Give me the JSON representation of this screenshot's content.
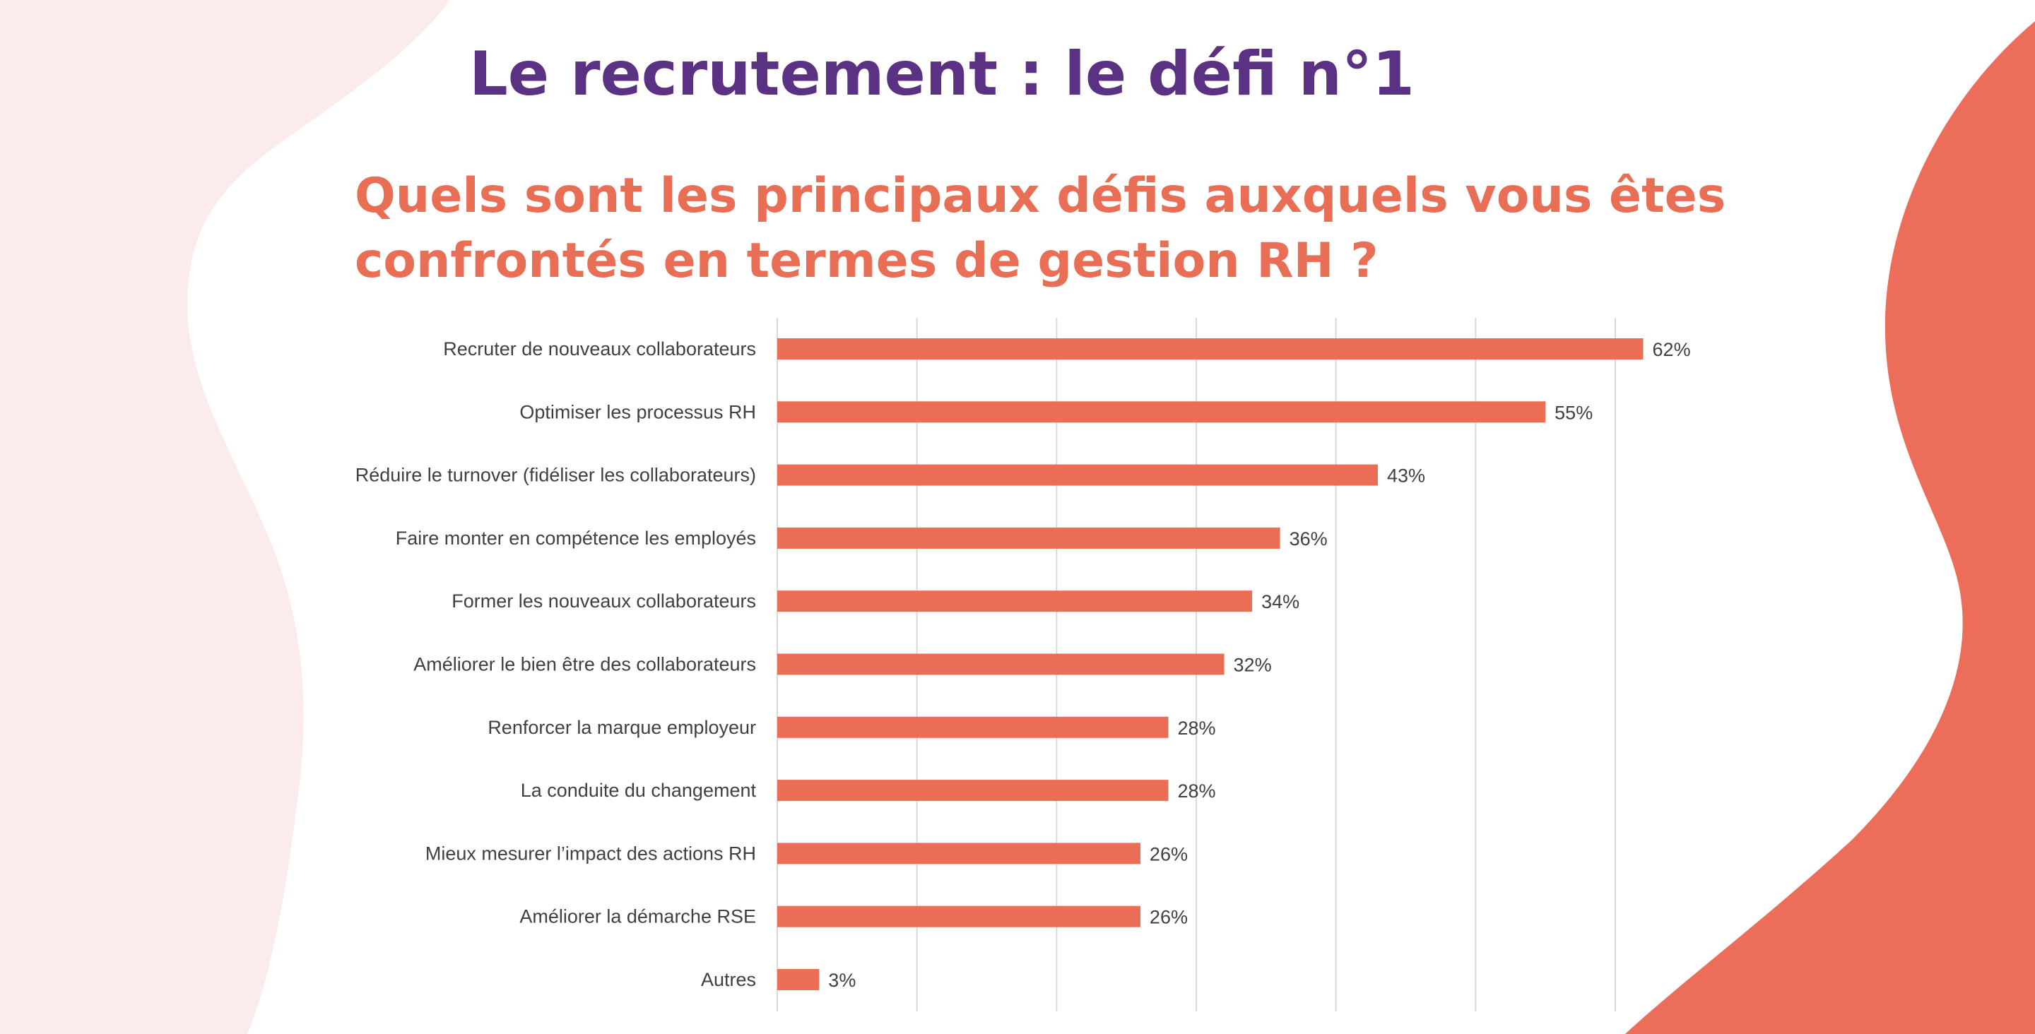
{
  "slide": {
    "title": "Le recrutement : le défi n°1",
    "question_line_1": "Quels sont les principaux défis auxquels vous êtes",
    "question_line_2": "confrontés en termes de gestion RH ?"
  },
  "colors": {
    "title": "#5b3183",
    "accent": "#e86f56",
    "bar": "#ec6d55",
    "blob_left": "#fbeceb",
    "blob_right": "#ec6d5a",
    "gridline": "#d9d9d9",
    "text": "#404040"
  },
  "chart_data": {
    "type": "bar",
    "orientation": "horizontal",
    "categories": [
      "Recruter de nouveaux collaborateurs",
      "Optimiser les processus RH",
      "Réduire le turnover (fidéliser les collaborateurs)",
      "Faire monter en compétence les employés",
      "Former les nouveaux collaborateurs",
      "Améliorer le bien être des collaborateurs",
      "Renforcer la marque employeur",
      "La conduite du changement",
      "Mieux mesurer l’impact des actions RH",
      "Améliorer la démarche RSE",
      "Autres"
    ],
    "values": [
      62,
      55,
      43,
      36,
      34,
      32,
      28,
      28,
      26,
      26,
      3
    ],
    "data_labels": [
      "62%",
      "55%",
      "43%",
      "36%",
      "34%",
      "32%",
      "28%",
      "28%",
      "26%",
      "26%",
      "3%"
    ],
    "xlim": [
      0,
      60
    ],
    "x_gridlines": [
      0,
      10,
      20,
      30,
      40,
      50,
      60
    ],
    "grid": true,
    "legend": "none"
  }
}
